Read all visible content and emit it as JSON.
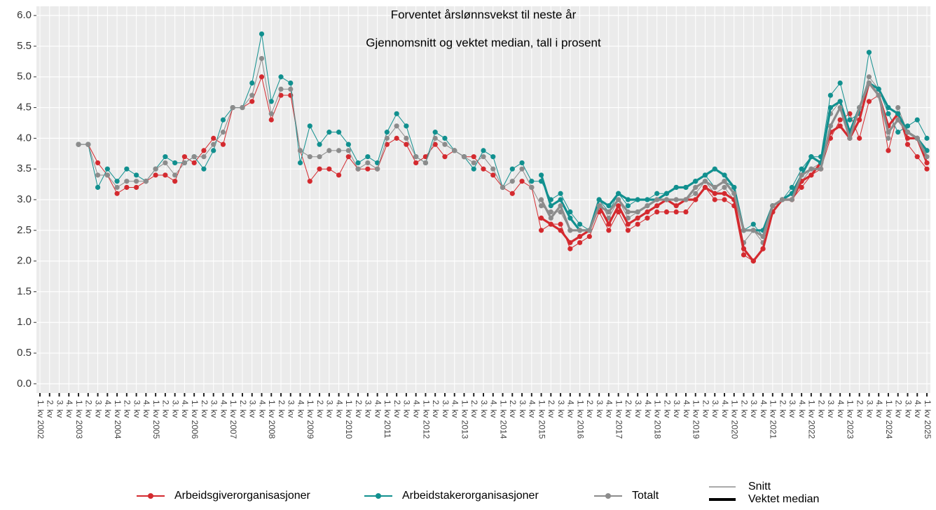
{
  "chart_data": {
    "type": "line",
    "title": "Forventet årslønnsvekst til neste år",
    "subtitle": "Gjennomsnitt og vektet median, tall i prosent",
    "categories": [
      "1. kv 2002",
      "2. kv",
      "3. kv",
      "4. kv",
      "1. kv 2003",
      "2. kv",
      "3. kv",
      "4. kv",
      "1. kv 2004",
      "2. kv",
      "3. kv",
      "4. kv",
      "1. kv 2005",
      "2. kv",
      "3. kv",
      "4. kv",
      "1. kv 2006",
      "2. kv",
      "3. kv",
      "4. kv",
      "1. kv 2007",
      "2. kv",
      "3. kv",
      "4. kv",
      "1. kv 2008",
      "2. kv",
      "3. kv",
      "4. kv",
      "1. kv 2009",
      "2. kv",
      "3. kv",
      "4. kv",
      "1. kv 2010",
      "2. kv",
      "3. kv",
      "4. kv",
      "1. kv 2011",
      "2. kv",
      "3. kv",
      "4. kv",
      "1. kv 2012",
      "2. kv",
      "3. kv",
      "4. kv",
      "1. kv 2013",
      "2. kv",
      "3. kv",
      "4. kv",
      "1. kv 2014",
      "2. kv",
      "3. kv",
      "4. kv",
      "1. kv 2015",
      "2. kv",
      "3. kv",
      "4. kv",
      "1. kv 2016",
      "2. kv",
      "3. kv",
      "4. kv",
      "1. kv 2017",
      "2. kv",
      "3. kv",
      "4. kv",
      "1. kv 2018",
      "2. kv",
      "3. kv",
      "4. kv",
      "1. kv 2019",
      "2. kv",
      "3. kv",
      "4. kv",
      "1. kv 2020",
      "2. kv",
      "3. kv",
      "4. kv",
      "1. kv 2021",
      "2. kv",
      "3. kv",
      "4. kv",
      "1. kv 2022",
      "2. kv",
      "3. kv",
      "4. kv",
      "1. kv 2023",
      "2. kv",
      "3. kv",
      "4. kv",
      "1. kv 2024",
      "2. kv",
      "3. kv",
      "4. kv",
      "1. kv 2025"
    ],
    "series": [
      {
        "name": "Arbeidsgiverorganisasjoner",
        "color": "#d42a2f",
        "values": [
          null,
          null,
          null,
          null,
          3.9,
          3.9,
          3.6,
          3.4,
          3.1,
          3.2,
          3.2,
          3.3,
          3.4,
          3.4,
          3.3,
          3.7,
          3.6,
          3.8,
          4.0,
          3.9,
          4.5,
          4.5,
          4.6,
          5.0,
          4.3,
          4.7,
          4.7,
          3.8,
          3.3,
          3.5,
          3.5,
          3.4,
          3.7,
          3.5,
          3.5,
          3.5,
          3.9,
          4.0,
          3.9,
          3.6,
          3.7,
          3.9,
          3.7,
          3.8,
          3.7,
          3.7,
          3.5,
          3.4,
          3.2,
          3.1,
          3.3,
          3.2,
          2.5,
          2.6,
          2.6,
          2.2,
          2.3,
          2.4,
          2.8,
          2.5,
          2.8,
          2.5,
          2.6,
          2.7,
          2.8,
          2.8,
          2.8,
          2.8,
          3.0,
          3.2,
          3.0,
          3.0,
          2.9,
          2.1,
          2.0,
          2.2,
          2.8,
          3.0,
          3.0,
          3.2,
          3.4,
          3.5,
          4.0,
          4.3,
          4.4,
          4.0,
          4.6,
          4.7,
          3.8,
          4.4,
          3.9,
          3.7,
          3.5
        ],
        "median": [
          null,
          null,
          null,
          null,
          null,
          null,
          null,
          null,
          null,
          null,
          null,
          null,
          null,
          null,
          null,
          null,
          null,
          null,
          null,
          null,
          null,
          null,
          null,
          null,
          null,
          null,
          null,
          null,
          null,
          null,
          null,
          null,
          null,
          null,
          null,
          null,
          null,
          null,
          null,
          null,
          null,
          null,
          null,
          null,
          null,
          null,
          null,
          null,
          null,
          null,
          null,
          null,
          2.7,
          2.6,
          2.5,
          2.3,
          2.4,
          2.5,
          2.9,
          2.6,
          2.9,
          2.6,
          2.7,
          2.8,
          2.9,
          3.0,
          2.9,
          3.0,
          3.0,
          3.2,
          3.1,
          3.1,
          3.0,
          2.2,
          2.0,
          2.2,
          2.8,
          3.0,
          3.0,
          3.3,
          3.4,
          3.6,
          4.1,
          4.2,
          4.0,
          4.3,
          4.9,
          4.7,
          4.2,
          4.4,
          4.0,
          4.0,
          3.6
        ]
      },
      {
        "name": "Arbeidstakerorganisasjoner",
        "color": "#11908f",
        "values": [
          null,
          null,
          null,
          null,
          3.9,
          3.9,
          3.2,
          3.5,
          3.3,
          3.5,
          3.4,
          3.3,
          3.5,
          3.7,
          3.6,
          3.6,
          3.7,
          3.5,
          3.8,
          4.3,
          4.5,
          4.5,
          4.9,
          5.7,
          4.6,
          5.0,
          4.9,
          3.6,
          4.2,
          3.9,
          4.1,
          4.1,
          3.9,
          3.6,
          3.7,
          3.6,
          4.1,
          4.4,
          4.2,
          3.7,
          3.6,
          4.1,
          4.0,
          3.8,
          3.7,
          3.5,
          3.8,
          3.7,
          3.2,
          3.5,
          3.6,
          3.3,
          3.3,
          3.0,
          3.1,
          2.8,
          2.6,
          2.5,
          3.0,
          2.8,
          3.1,
          2.9,
          3.0,
          3.0,
          3.1,
          3.1,
          3.2,
          3.2,
          3.3,
          3.4,
          3.2,
          3.3,
          3.2,
          2.5,
          2.6,
          2.4,
          2.9,
          3.0,
          3.2,
          3.5,
          3.7,
          3.7,
          4.7,
          4.9,
          4.3,
          4.4,
          5.4,
          4.8,
          4.4,
          4.1,
          4.2,
          4.3,
          4.0
        ],
        "median": [
          null,
          null,
          null,
          null,
          null,
          null,
          null,
          null,
          null,
          null,
          null,
          null,
          null,
          null,
          null,
          null,
          null,
          null,
          null,
          null,
          null,
          null,
          null,
          null,
          null,
          null,
          null,
          null,
          null,
          null,
          null,
          null,
          null,
          null,
          null,
          null,
          null,
          null,
          null,
          null,
          null,
          null,
          null,
          null,
          null,
          null,
          null,
          null,
          null,
          null,
          null,
          null,
          3.4,
          2.9,
          3.0,
          2.7,
          2.5,
          2.5,
          3.0,
          2.9,
          3.1,
          3.0,
          3.0,
          3.0,
          3.0,
          3.1,
          3.2,
          3.2,
          3.3,
          3.4,
          3.5,
          3.4,
          3.2,
          2.5,
          2.5,
          2.5,
          2.9,
          3.0,
          3.1,
          3.4,
          3.7,
          3.6,
          4.5,
          4.6,
          4.1,
          4.5,
          4.9,
          4.8,
          4.5,
          4.4,
          4.1,
          4.0,
          3.8
        ]
      },
      {
        "name": "Totalt",
        "color": "#8c8c8c",
        "values": [
          null,
          null,
          null,
          null,
          3.9,
          3.9,
          3.4,
          3.4,
          3.2,
          3.3,
          3.3,
          3.3,
          3.5,
          3.6,
          3.4,
          3.6,
          3.7,
          3.7,
          3.9,
          4.1,
          4.5,
          4.5,
          4.7,
          5.3,
          4.4,
          4.8,
          4.8,
          3.8,
          3.7,
          3.7,
          3.8,
          3.8,
          3.8,
          3.5,
          3.6,
          3.5,
          4.0,
          4.2,
          4.0,
          3.7,
          3.6,
          4.0,
          3.9,
          3.8,
          3.7,
          3.6,
          3.7,
          3.5,
          3.2,
          3.3,
          3.5,
          3.2,
          2.9,
          2.8,
          2.8,
          2.5,
          2.5,
          2.5,
          3.0,
          2.7,
          3.0,
          2.7,
          2.8,
          2.9,
          3.0,
          3.0,
          3.0,
          3.0,
          3.1,
          3.3,
          3.1,
          3.2,
          3.0,
          2.3,
          2.5,
          2.3,
          2.9,
          3.0,
          3.1,
          3.3,
          3.5,
          3.6,
          4.4,
          4.6,
          4.0,
          4.5,
          5.0,
          4.8,
          4.0,
          4.5,
          4.1,
          4.0,
          3.8
        ],
        "median": [
          null,
          null,
          null,
          null,
          null,
          null,
          null,
          null,
          null,
          null,
          null,
          null,
          null,
          null,
          null,
          null,
          null,
          null,
          null,
          null,
          null,
          null,
          null,
          null,
          null,
          null,
          null,
          null,
          null,
          null,
          null,
          null,
          null,
          null,
          null,
          null,
          null,
          null,
          null,
          null,
          null,
          null,
          null,
          null,
          null,
          null,
          null,
          null,
          null,
          null,
          null,
          null,
          3.0,
          2.7,
          2.9,
          2.5,
          2.5,
          2.5,
          2.9,
          2.8,
          3.0,
          2.8,
          2.8,
          2.9,
          3.0,
          3.0,
          3.0,
          3.0,
          3.2,
          3.3,
          3.2,
          3.3,
          3.1,
          2.5,
          2.5,
          2.4,
          2.9,
          3.0,
          3.0,
          3.4,
          3.5,
          3.5,
          4.2,
          4.5,
          4.0,
          4.5,
          4.9,
          4.7,
          4.1,
          4.3,
          4.1,
          4.0,
          3.7
        ]
      }
    ],
    "linetypes": [
      "Snitt",
      "Vektet median"
    ],
    "ylim": [
      -0.15,
      6.15
    ],
    "yticks": [
      {
        "value": 0,
        "label": "0.0"
      },
      0.5,
      {
        "value": 1,
        "label": "1.0"
      },
      1.5,
      {
        "value": 2,
        "label": "2.0"
      },
      2.5,
      {
        "value": 3,
        "label": "3.0"
      },
      3.5,
      {
        "value": 4,
        "label": "4.0"
      },
      4.5,
      {
        "value": 5,
        "label": "5.0"
      },
      5.5,
      {
        "value": 6,
        "label": "6.0"
      }
    ],
    "grid": true,
    "legend": "bottom"
  }
}
